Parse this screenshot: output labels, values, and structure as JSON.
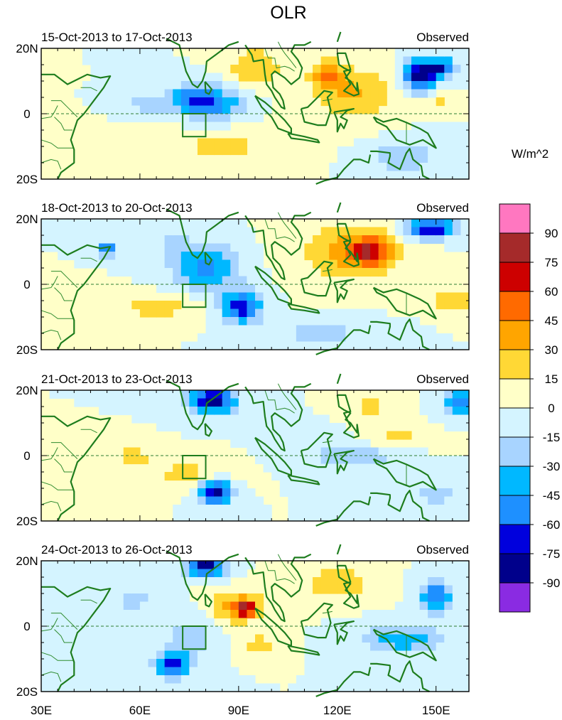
{
  "chart_data": {
    "type": "heatmap",
    "title": "OLR",
    "units": "W/m^2",
    "x_range": [
      30,
      160
    ],
    "y_range": [
      -20,
      20
    ],
    "x_ticks": [
      {
        "v": 30,
        "label": "30E"
      },
      {
        "v": 60,
        "label": "60E"
      },
      {
        "v": 90,
        "label": "90E"
      },
      {
        "v": 120,
        "label": "120E"
      },
      {
        "v": 150,
        "label": "150E"
      }
    ],
    "y_ticks": [
      {
        "v": 20,
        "label": "20N"
      },
      {
        "v": 0,
        "label": "0"
      },
      {
        "v": -20,
        "label": "20S"
      }
    ],
    "colorbar": {
      "labels": [
        "90",
        "75",
        "60",
        "45",
        "30",
        "15",
        "0",
        "-15",
        "-30",
        "-45",
        "-60",
        "-75",
        "-90"
      ],
      "colors": [
        "#ff77c0",
        "#a52a2a",
        "#cd0000",
        "#ff6a00",
        "#ffa500",
        "#ffd835",
        "#ffffc8",
        "#d4f4ff",
        "#a8d4ff",
        "#00b8ff",
        "#1e90ff",
        "#0000dd",
        "#00008b",
        "#8a2be2"
      ]
    },
    "box_region": {
      "lon": [
        73,
        80
      ],
      "lat": [
        -7,
        0
      ]
    },
    "panels": [
      {
        "period": "15-Oct-2013 to 17-Oct-2013",
        "label": "Observed",
        "anomalies": [
          {
            "lon": 82,
            "lat": 3,
            "rx": 9,
            "ry": 5,
            "v": -55
          },
          {
            "lon": 75,
            "lat": 5,
            "rx": 7,
            "ry": 4,
            "v": -35
          },
          {
            "lon": 62,
            "lat": 3,
            "rx": 6,
            "ry": 2.5,
            "v": -30
          },
          {
            "lon": 145,
            "lat": 12,
            "rx": 5,
            "ry": 5,
            "v": -88
          },
          {
            "lon": 152,
            "lat": 14,
            "rx": 4,
            "ry": 3,
            "v": -65
          },
          {
            "lon": 140,
            "lat": -13,
            "rx": 10,
            "ry": 5,
            "v": -30
          },
          {
            "lon": 95,
            "lat": 14,
            "rx": 8,
            "ry": 6,
            "v": 30
          },
          {
            "lon": 125,
            "lat": 6,
            "rx": 12,
            "ry": 8,
            "v": 32
          },
          {
            "lon": 117,
            "lat": 12,
            "rx": 5,
            "ry": 4,
            "v": 45
          },
          {
            "lon": 85,
            "lat": -10,
            "rx": 18,
            "ry": 6,
            "v": 18
          },
          {
            "lon": 150,
            "lat": 3,
            "rx": 6,
            "ry": 3,
            "v": 18
          }
        ]
      },
      {
        "period": "18-Oct-2013 to 20-Oct-2013",
        "label": "Observed",
        "anomalies": [
          {
            "lon": 80,
            "lat": 5,
            "rx": 10,
            "ry": 7,
            "v": -50
          },
          {
            "lon": 91,
            "lat": -7,
            "rx": 6,
            "ry": 5,
            "v": -70
          },
          {
            "lon": 50,
            "lat": 11,
            "rx": 3,
            "ry": 2,
            "v": -70
          },
          {
            "lon": 148,
            "lat": 17,
            "rx": 8,
            "ry": 3,
            "v": -80
          },
          {
            "lon": 70,
            "lat": 12,
            "rx": 5,
            "ry": 4,
            "v": -20
          },
          {
            "lon": 125,
            "lat": 10,
            "rx": 15,
            "ry": 9,
            "v": 38
          },
          {
            "lon": 130,
            "lat": 10,
            "rx": 5,
            "ry": 4,
            "v": 48
          },
          {
            "lon": 65,
            "lat": -7,
            "rx": 14,
            "ry": 4,
            "v": 22
          },
          {
            "lon": 115,
            "lat": -15,
            "rx": 15,
            "ry": 4,
            "v": -20
          },
          {
            "lon": 155,
            "lat": -5,
            "rx": 5,
            "ry": 4,
            "v": 30
          }
        ]
      },
      {
        "period": "21-Oct-2013 to 23-Oct-2013",
        "label": "Observed",
        "anomalies": [
          {
            "lon": 82,
            "lat": 17,
            "rx": 7,
            "ry": 4,
            "v": -88
          },
          {
            "lon": 83,
            "lat": -11,
            "rx": 5,
            "ry": 4,
            "v": -85
          },
          {
            "lon": 157,
            "lat": 16,
            "rx": 4,
            "ry": 4,
            "v": -60
          },
          {
            "lon": 125,
            "lat": 0,
            "rx": 15,
            "ry": 5,
            "v": -25
          },
          {
            "lon": 130,
            "lat": 15,
            "rx": 6,
            "ry": 3,
            "v": 20
          },
          {
            "lon": 138,
            "lat": 5,
            "rx": 12,
            "ry": 3,
            "v": 22
          },
          {
            "lon": 75,
            "lat": -6,
            "rx": 12,
            "ry": 4,
            "v": 25
          },
          {
            "lon": 58,
            "lat": 0,
            "rx": 8,
            "ry": 3,
            "v": 20
          },
          {
            "lon": 150,
            "lat": -12,
            "rx": 8,
            "ry": 4,
            "v": -20
          }
        ]
      },
      {
        "period": "24-Oct-2013 to 26-Oct-2013",
        "label": "Observed",
        "anomalies": [
          {
            "lon": 80,
            "lat": 18,
            "rx": 6,
            "ry": 3,
            "v": -85
          },
          {
            "lon": 70,
            "lat": -12,
            "rx": 5,
            "ry": 4,
            "v": -75
          },
          {
            "lon": 150,
            "lat": 9,
            "rx": 5,
            "ry": 5,
            "v": -60
          },
          {
            "lon": 140,
            "lat": -4,
            "rx": 12,
            "ry": 4,
            "v": -45
          },
          {
            "lon": 90,
            "lat": 6,
            "rx": 8,
            "ry": 5,
            "v": 40
          },
          {
            "lon": 92,
            "lat": 5,
            "rx": 3,
            "ry": 2,
            "v": 62
          },
          {
            "lon": 120,
            "lat": 13,
            "rx": 10,
            "ry": 5,
            "v": 28
          },
          {
            "lon": 75,
            "lat": -3,
            "rx": 8,
            "ry": 6,
            "v": -25
          },
          {
            "lon": 96,
            "lat": -6,
            "rx": 6,
            "ry": 3,
            "v": 28
          },
          {
            "lon": 58,
            "lat": 8,
            "rx": 6,
            "ry": 3,
            "v": -25
          }
        ]
      }
    ]
  }
}
